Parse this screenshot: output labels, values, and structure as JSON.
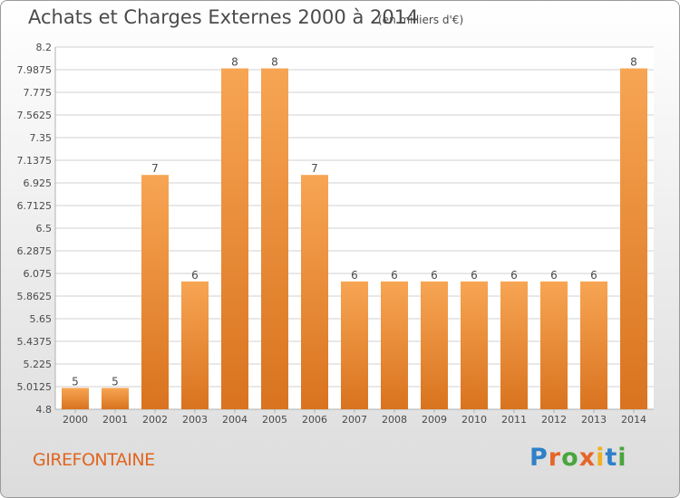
{
  "header": {
    "title": "Achats et Charges Externes 2000 à 2014",
    "subtitle": "(en milliers d'€)"
  },
  "footer": {
    "commune": "GIREFONTAINE",
    "logo": "Proxiti"
  },
  "colors": {
    "bar_top": "#f7a553",
    "bar_bottom": "#d9731f",
    "grid": "#d0d0d0",
    "text": "#4a4a4a",
    "commune": "#e0651f",
    "logo_letters": [
      "#2f80c8",
      "#e6662a",
      "#49a53d",
      "#e6662a",
      "#f0b020",
      "#2f80c8",
      "#49a53d"
    ]
  },
  "chart_data": {
    "type": "bar",
    "categories": [
      "2000",
      "2001",
      "2002",
      "2003",
      "2004",
      "2005",
      "2006",
      "2007",
      "2008",
      "2009",
      "2010",
      "2011",
      "2012",
      "2013",
      "2014"
    ],
    "values": [
      5,
      5,
      7,
      6,
      8,
      8,
      7,
      6,
      6,
      6,
      6,
      6,
      6,
      6,
      8
    ],
    "labels": [
      "5",
      "5",
      "7",
      "6",
      "8",
      "8",
      "7",
      "6",
      "6",
      "6",
      "6",
      "6",
      "6",
      "6",
      "8"
    ],
    "ylim": [
      4.8,
      8.2
    ],
    "yticks": [
      "8.2",
      "7.9875",
      "7.775",
      "7.5625",
      "7.35",
      "7.1375",
      "6.925",
      "6.7125",
      "6.5",
      "6.2875",
      "6.075",
      "5.8625",
      "5.65",
      "5.4375",
      "5.225",
      "5.0125",
      "4.8"
    ],
    "grid": true
  }
}
